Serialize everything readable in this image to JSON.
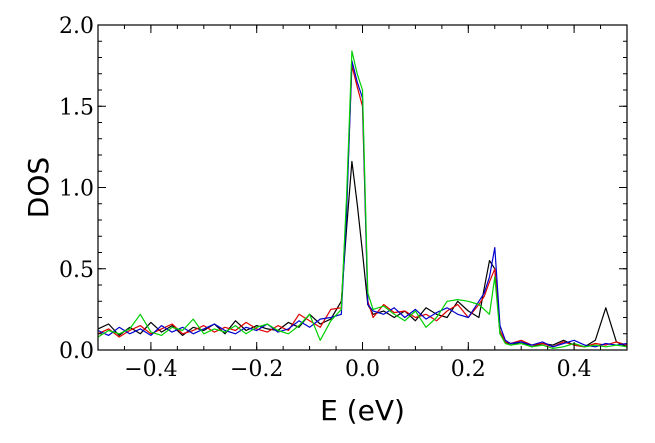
{
  "chart_data": {
    "type": "line",
    "title": "",
    "xlabel": "E (eV)",
    "ylabel": "DOS",
    "xlim": [
      -0.5,
      0.5
    ],
    "ylim": [
      0,
      2.0
    ],
    "xticks": [
      -0.4,
      -0.2,
      0.0,
      0.2,
      0.4
    ],
    "xtick_labels": [
      "−0.4",
      "−0.2",
      "0.0",
      "0.2",
      "0.4"
    ],
    "yticks": [
      0.0,
      0.5,
      1.0,
      1.5,
      2.0
    ],
    "ytick_labels": [
      "0.0",
      "0.5",
      "1.0",
      "1.5",
      "2.0"
    ],
    "grid": false,
    "legend": "none",
    "x": [
      -0.5,
      -0.48,
      -0.46,
      -0.44,
      -0.42,
      -0.4,
      -0.38,
      -0.36,
      -0.34,
      -0.32,
      -0.3,
      -0.28,
      -0.26,
      -0.24,
      -0.22,
      -0.2,
      -0.18,
      -0.16,
      -0.14,
      -0.12,
      -0.1,
      -0.08,
      -0.06,
      -0.04,
      -0.03,
      -0.02,
      -0.01,
      0.0,
      0.01,
      0.02,
      0.04,
      0.06,
      0.08,
      0.1,
      0.12,
      0.14,
      0.16,
      0.18,
      0.2,
      0.22,
      0.23,
      0.24,
      0.25,
      0.26,
      0.27,
      0.28,
      0.3,
      0.32,
      0.34,
      0.36,
      0.38,
      0.4,
      0.42,
      0.44,
      0.46,
      0.48,
      0.5
    ],
    "series": [
      {
        "color": "#000000",
        "values": [
          0.13,
          0.16,
          0.09,
          0.14,
          0.1,
          0.17,
          0.11,
          0.15,
          0.09,
          0.14,
          0.12,
          0.16,
          0.1,
          0.18,
          0.12,
          0.15,
          0.13,
          0.12,
          0.17,
          0.14,
          0.22,
          0.16,
          0.19,
          0.3,
          0.75,
          1.16,
          0.9,
          0.6,
          0.28,
          0.22,
          0.24,
          0.2,
          0.24,
          0.18,
          0.26,
          0.22,
          0.2,
          0.3,
          0.24,
          0.2,
          0.38,
          0.55,
          0.5,
          0.1,
          0.05,
          0.03,
          0.05,
          0.02,
          0.04,
          0.03,
          0.06,
          0.03,
          0.02,
          0.06,
          0.26,
          0.05,
          0.02
        ]
      },
      {
        "color": "#e00000",
        "values": [
          0.1,
          0.13,
          0.08,
          0.12,
          0.15,
          0.1,
          0.13,
          0.16,
          0.1,
          0.12,
          0.15,
          0.11,
          0.14,
          0.12,
          0.17,
          0.13,
          0.11,
          0.15,
          0.12,
          0.22,
          0.18,
          0.14,
          0.25,
          0.26,
          0.9,
          1.75,
          1.62,
          1.5,
          0.3,
          0.2,
          0.28,
          0.23,
          0.24,
          0.2,
          0.22,
          0.18,
          0.24,
          0.28,
          0.2,
          0.28,
          0.33,
          0.42,
          0.5,
          0.12,
          0.05,
          0.04,
          0.06,
          0.03,
          0.04,
          0.02,
          0.05,
          0.03,
          0.02,
          0.04,
          0.03,
          0.05,
          0.03
        ]
      },
      {
        "color": "#0000d0",
        "values": [
          0.12,
          0.09,
          0.14,
          0.1,
          0.13,
          0.09,
          0.15,
          0.11,
          0.14,
          0.1,
          0.13,
          0.16,
          0.12,
          0.1,
          0.14,
          0.12,
          0.16,
          0.11,
          0.13,
          0.18,
          0.14,
          0.19,
          0.2,
          0.22,
          0.85,
          1.78,
          1.65,
          1.55,
          0.28,
          0.24,
          0.22,
          0.26,
          0.2,
          0.25,
          0.19,
          0.23,
          0.26,
          0.22,
          0.2,
          0.3,
          0.35,
          0.45,
          0.63,
          0.15,
          0.06,
          0.04,
          0.05,
          0.03,
          0.05,
          0.02,
          0.04,
          0.06,
          0.03,
          0.02,
          0.04,
          0.03,
          0.04
        ]
      },
      {
        "color": "#00d000",
        "values": [
          0.08,
          0.12,
          0.1,
          0.13,
          0.22,
          0.11,
          0.09,
          0.14,
          0.12,
          0.19,
          0.1,
          0.13,
          0.11,
          0.15,
          0.1,
          0.14,
          0.16,
          0.12,
          0.1,
          0.15,
          0.22,
          0.06,
          0.18,
          0.25,
          0.95,
          1.84,
          1.7,
          1.6,
          0.35,
          0.25,
          0.27,
          0.22,
          0.18,
          0.24,
          0.14,
          0.2,
          0.3,
          0.31,
          0.3,
          0.28,
          0.25,
          0.22,
          0.45,
          0.1,
          0.04,
          0.03,
          0.04,
          0.02,
          0.03,
          0.01,
          0.02,
          0.04,
          0.02,
          0.03,
          0.02,
          0.03,
          0.02
        ]
      }
    ]
  }
}
